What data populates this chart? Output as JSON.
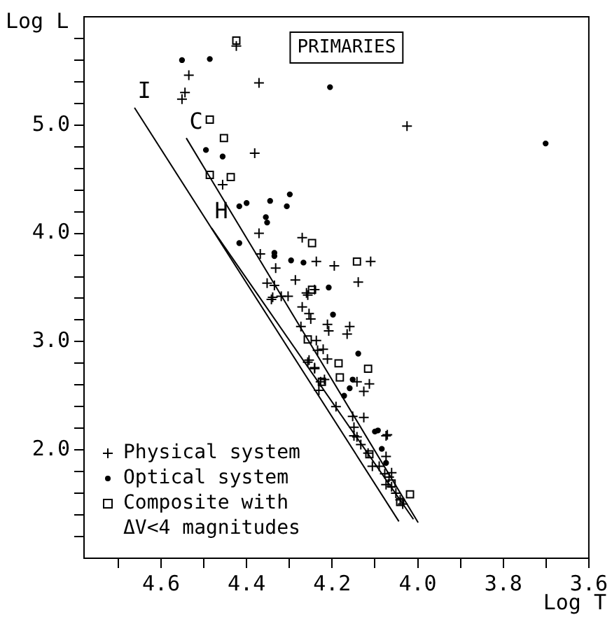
{
  "chart_data": {
    "type": "scatter",
    "xlabel": "Log T",
    "ylabel": "Log L",
    "annotations": [
      "PRIMARIES"
    ],
    "xlim": [
      4.78,
      3.6
    ],
    "ylim": [
      1.0,
      6.0
    ],
    "xticks": [
      {
        "value": 4.7,
        "label": null
      },
      {
        "value": 4.6,
        "label": "4.6"
      },
      {
        "value": 4.5,
        "label": null
      },
      {
        "value": 4.4,
        "label": "4.4"
      },
      {
        "value": 4.3,
        "label": null
      },
      {
        "value": 4.2,
        "label": "4.2"
      },
      {
        "value": 4.1,
        "label": null
      },
      {
        "value": 4.0,
        "label": "4.0"
      },
      {
        "value": 3.9,
        "label": null
      },
      {
        "value": 3.8,
        "label": "3.8"
      },
      {
        "value": 3.7,
        "label": null
      },
      {
        "value": 3.6,
        "label": "3.6"
      }
    ],
    "yticks": [
      {
        "value": 1.2,
        "label": null
      },
      {
        "value": 1.4,
        "label": null
      },
      {
        "value": 1.6,
        "label": null
      },
      {
        "value": 1.8,
        "label": null
      },
      {
        "value": 2.0,
        "label": "2.0"
      },
      {
        "value": 2.2,
        "label": null
      },
      {
        "value": 2.4,
        "label": null
      },
      {
        "value": 2.6,
        "label": null
      },
      {
        "value": 2.8,
        "label": null
      },
      {
        "value": 3.0,
        "label": "3.0"
      },
      {
        "value": 3.2,
        "label": null
      },
      {
        "value": 3.4,
        "label": null
      },
      {
        "value": 3.6,
        "label": null
      },
      {
        "value": 3.8,
        "label": null
      },
      {
        "value": 4.0,
        "label": "4.0"
      },
      {
        "value": 4.2,
        "label": null
      },
      {
        "value": 4.4,
        "label": null
      },
      {
        "value": 4.6,
        "label": null
      },
      {
        "value": 4.8,
        "label": null
      },
      {
        "value": 5.0,
        "label": "5.0"
      },
      {
        "value": 5.2,
        "label": null
      },
      {
        "value": 5.4,
        "label": null
      },
      {
        "value": 5.6,
        "label": null
      },
      {
        "value": 5.8,
        "label": null
      }
    ],
    "legend": "bottom left",
    "series": [
      {
        "name": "Physical system",
        "color": "#000000",
        "marker": "cross",
        "x": [
          4.424,
          4.535,
          4.544,
          4.551,
          4.371,
          4.381,
          4.456,
          4.371,
          4.368,
          4.27,
          4.237,
          4.195,
          4.332,
          4.352,
          4.335,
          4.286,
          4.319,
          4.303,
          4.339,
          4.26,
          4.241,
          4.025,
          4.11,
          4.139,
          4.342,
          4.257,
          4.27,
          4.254,
          4.25,
          4.273,
          4.211,
          4.208,
          4.159,
          4.165,
          4.237,
          4.234,
          4.211,
          4.254,
          4.241,
          4.227,
          4.218,
          4.231,
          4.142,
          4.113,
          4.126,
          4.191,
          4.152,
          4.126,
          4.149,
          4.071,
          4.142,
          4.221,
          4.257,
          4.241,
          4.149,
          4.074,
          4.133,
          4.116,
          4.074,
          4.106,
          4.09,
          4.077,
          4.067,
          4.061,
          4.074,
          4.061,
          4.051,
          4.041,
          4.035
        ],
        "values": [
          5.73,
          5.46,
          5.3,
          5.24,
          5.39,
          4.74,
          4.45,
          4.0,
          3.81,
          3.96,
          3.74,
          3.7,
          3.68,
          3.54,
          3.52,
          3.57,
          3.42,
          3.42,
          3.41,
          3.45,
          3.48,
          4.99,
          3.74,
          3.55,
          3.39,
          3.43,
          3.32,
          3.26,
          3.21,
          3.14,
          3.16,
          3.1,
          3.14,
          3.07,
          3.01,
          2.92,
          2.84,
          2.83,
          2.75,
          2.63,
          2.65,
          2.55,
          2.63,
          2.61,
          2.54,
          2.4,
          2.31,
          2.3,
          2.21,
          2.14,
          2.12,
          2.93,
          2.81,
          2.76,
          2.13,
          2.13,
          2.05,
          1.97,
          1.94,
          1.85,
          1.85,
          1.78,
          1.75,
          1.79,
          1.68,
          1.66,
          1.6,
          1.54,
          1.5
        ]
      },
      {
        "name": "Optical system",
        "color": "#000000",
        "marker": "circle",
        "x": [
          4.551,
          4.486,
          4.495,
          4.456,
          4.417,
          4.4,
          4.345,
          4.303,
          4.299,
          4.355,
          4.352,
          4.417,
          4.335,
          4.296,
          4.205,
          3.701,
          4.306,
          4.335,
          4.267,
          4.208,
          4.198,
          4.139,
          4.152,
          4.159,
          4.093,
          4.172,
          4.1,
          4.084,
          4.074
        ],
        "values": [
          5.6,
          5.61,
          4.77,
          4.71,
          4.25,
          4.28,
          4.3,
          null,
          4.36,
          4.15,
          4.1,
          3.91,
          3.79,
          3.75,
          5.35,
          4.83,
          4.25,
          3.82,
          3.73,
          3.5,
          3.25,
          2.89,
          2.65,
          2.57,
          2.18,
          2.5,
          2.17,
          2.01,
          1.88
        ]
      },
      {
        "name": "Composite with ΔV<4 magnitudes",
        "color": "#000000",
        "marker": "square",
        "x": [
          4.424,
          4.486,
          4.453,
          4.486,
          4.437,
          4.247,
          4.142,
          4.247,
          4.257,
          4.185,
          4.182,
          4.116,
          4.224,
          4.113,
          4.061,
          4.041,
          4.018
        ],
        "values": [
          5.78,
          5.05,
          4.88,
          4.54,
          4.52,
          3.91,
          3.74,
          3.48,
          3.02,
          2.8,
          2.67,
          2.75,
          2.63,
          1.96,
          1.69,
          1.52,
          1.59
        ]
      },
      {
        "name": "I",
        "type": "line",
        "color": "#000000",
        "x": [
          4.662,
          4.044
        ],
        "values": [
          5.16,
          1.34
        ]
      },
      {
        "name": "C",
        "type": "line",
        "color": "#000000",
        "x": [
          4.541,
          3.999
        ],
        "values": [
          4.88,
          1.33
        ]
      },
      {
        "name": "H",
        "type": "line",
        "color": "#000000",
        "x": [
          4.482,
          4.01
        ],
        "values": [
          4.05,
          1.36
        ]
      }
    ]
  }
}
